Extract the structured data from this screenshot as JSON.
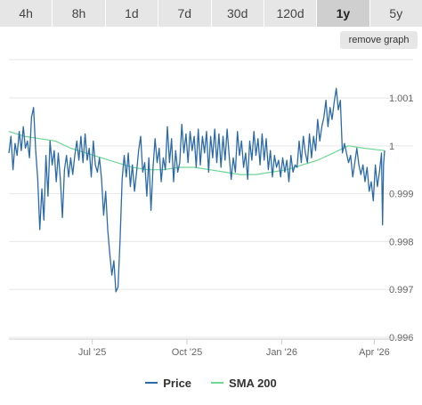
{
  "tabs": [
    {
      "label": "4h",
      "active": false
    },
    {
      "label": "8h",
      "active": false
    },
    {
      "label": "1d",
      "active": false
    },
    {
      "label": "7d",
      "active": false
    },
    {
      "label": "30d",
      "active": false
    },
    {
      "label": "120d",
      "active": false
    },
    {
      "label": "1y",
      "active": true
    },
    {
      "label": "5y",
      "active": false
    }
  ],
  "remove_graph_label": "remove graph",
  "colors": {
    "price": "#2b6aa8",
    "sma": "#6fd694",
    "grid": "#e6e6e6"
  },
  "chart_data": {
    "type": "line",
    "title": "",
    "xlabel": "",
    "ylabel": "",
    "x_range": [
      "2025-04-11",
      "2026-04-11"
    ],
    "ylim": [
      0.996,
      1.0018
    ],
    "yticks": [
      {
        "value": 1.001,
        "label": "1.001"
      },
      {
        "value": 1.0,
        "label": "1"
      },
      {
        "value": 0.999,
        "label": "0.999"
      },
      {
        "value": 0.998,
        "label": "0.998"
      },
      {
        "value": 0.997,
        "label": "0.997"
      },
      {
        "value": 0.996,
        "label": "0.996"
      }
    ],
    "xticks": [
      {
        "date": "2025-07-01",
        "label": "Jul '25"
      },
      {
        "date": "2025-10-01",
        "label": "Oct '25"
      },
      {
        "date": "2026-01-01",
        "label": "Jan '26"
      },
      {
        "date": "2026-04-01",
        "label": "Apr '26"
      }
    ],
    "grid": true,
    "legend_position": "bottom",
    "series": [
      {
        "name": "Price",
        "points": [
          [
            "2025-04-11",
            0.99985
          ],
          [
            "2025-04-13",
            1.0002
          ],
          [
            "2025-04-15",
            0.9995
          ],
          [
            "2025-04-17",
            1.00005
          ],
          [
            "2025-04-19",
            0.9998
          ],
          [
            "2025-04-21",
            1.0003
          ],
          [
            "2025-04-23",
            0.9999
          ],
          [
            "2025-04-25",
            1.0004
          ],
          [
            "2025-04-27",
            0.99995
          ],
          [
            "2025-04-29",
            1.0001
          ],
          [
            "2025-05-01",
            0.99975
          ],
          [
            "2025-05-03",
            1.0006
          ],
          [
            "2025-05-05",
            1.0008
          ],
          [
            "2025-05-07",
            0.9999
          ],
          [
            "2025-05-09",
            0.9993
          ],
          [
            "2025-05-11",
            0.99825
          ],
          [
            "2025-05-13",
            0.9991
          ],
          [
            "2025-05-15",
            0.99845
          ],
          [
            "2025-05-17",
            0.9998
          ],
          [
            "2025-05-19",
            0.99895
          ],
          [
            "2025-05-21",
            1.0001
          ],
          [
            "2025-05-23",
            0.9996
          ],
          [
            "2025-05-25",
            0.9999
          ],
          [
            "2025-05-27",
            0.99925
          ],
          [
            "2025-05-29",
            0.99985
          ],
          [
            "2025-05-31",
            0.9993
          ],
          [
            "2025-06-02",
            0.9985
          ],
          [
            "2025-06-04",
            0.9995
          ],
          [
            "2025-06-06",
            0.9998
          ],
          [
            "2025-06-08",
            0.99935
          ],
          [
            "2025-06-10",
            0.99975
          ],
          [
            "2025-06-12",
            0.9994
          ],
          [
            "2025-06-14",
            0.9998
          ],
          [
            "2025-06-16",
            1.0001
          ],
          [
            "2025-06-18",
            0.9997
          ],
          [
            "2025-06-20",
            1.0002
          ],
          [
            "2025-06-22",
            0.99965
          ],
          [
            "2025-06-24",
            1.00025
          ],
          [
            "2025-06-26",
            0.9997
          ],
          [
            "2025-06-28",
            0.99995
          ],
          [
            "2025-06-30",
            0.99935
          ],
          [
            "2025-07-02",
            1.0001
          ],
          [
            "2025-07-04",
            0.9996
          ],
          [
            "2025-07-06",
            0.99945
          ],
          [
            "2025-07-08",
            0.99975
          ],
          [
            "2025-07-10",
            0.9993
          ],
          [
            "2025-07-12",
            0.99855
          ],
          [
            "2025-07-14",
            0.99905
          ],
          [
            "2025-07-16",
            0.99825
          ],
          [
            "2025-07-18",
            0.99775
          ],
          [
            "2025-07-20",
            0.9973
          ],
          [
            "2025-07-22",
            0.9976
          ],
          [
            "2025-07-24",
            0.99695
          ],
          [
            "2025-07-26",
            0.99705
          ],
          [
            "2025-07-28",
            0.99805
          ],
          [
            "2025-07-30",
            0.9993
          ],
          [
            "2025-08-01",
            0.9998
          ],
          [
            "2025-08-03",
            0.99935
          ],
          [
            "2025-08-05",
            0.99985
          ],
          [
            "2025-08-07",
            0.99915
          ],
          [
            "2025-08-09",
            0.9996
          ],
          [
            "2025-08-11",
            0.99905
          ],
          [
            "2025-08-13",
            0.99945
          ],
          [
            "2025-08-15",
            0.9999
          ],
          [
            "2025-08-17",
            1.0002
          ],
          [
            "2025-08-19",
            0.99945
          ],
          [
            "2025-08-21",
            0.99965
          ],
          [
            "2025-08-23",
            0.99895
          ],
          [
            "2025-08-25",
            0.99975
          ],
          [
            "2025-08-27",
            0.99865
          ],
          [
            "2025-08-29",
            0.99955
          ],
          [
            "2025-08-31",
            1.00015
          ],
          [
            "2025-09-02",
            0.99965
          ],
          [
            "2025-09-04",
            0.99995
          ],
          [
            "2025-09-06",
            0.99925
          ],
          [
            "2025-09-08",
            0.99975
          ],
          [
            "2025-09-10",
            0.9995
          ],
          [
            "2025-09-12",
            1.0004
          ],
          [
            "2025-09-14",
            0.99965
          ],
          [
            "2025-09-16",
            1.00015
          ],
          [
            "2025-09-18",
            0.99925
          ],
          [
            "2025-09-20",
            0.9999
          ],
          [
            "2025-09-22",
            0.99945
          ],
          [
            "2025-09-24",
            0.99965
          ],
          [
            "2025-09-26",
            1.00045
          ],
          [
            "2025-09-28",
            0.99985
          ],
          [
            "2025-09-30",
            1.00025
          ],
          [
            "2025-10-02",
            0.99965
          ],
          [
            "2025-10-04",
            1.0003
          ],
          [
            "2025-10-06",
            0.9999
          ],
          [
            "2025-10-08",
            1.0002
          ],
          [
            "2025-10-10",
            0.99955
          ],
          [
            "2025-10-12",
            1.00035
          ],
          [
            "2025-10-14",
            0.9996
          ],
          [
            "2025-10-16",
            1.0002
          ],
          [
            "2025-10-18",
            0.99985
          ],
          [
            "2025-10-20",
            1.0003
          ],
          [
            "2025-10-22",
            0.99945
          ],
          [
            "2025-10-24",
            1.0002
          ],
          [
            "2025-10-26",
            0.99975
          ],
          [
            "2025-10-28",
            1.00035
          ],
          [
            "2025-10-30",
            0.99965
          ],
          [
            "2025-11-01",
            1.00025
          ],
          [
            "2025-11-03",
            0.99955
          ],
          [
            "2025-11-05",
            1.0002
          ],
          [
            "2025-11-07",
            0.9997
          ],
          [
            "2025-11-09",
            1.00035
          ],
          [
            "2025-11-11",
            0.9998
          ],
          [
            "2025-11-13",
            0.9993
          ],
          [
            "2025-11-15",
            0.99975
          ],
          [
            "2025-11-17",
            0.99945
          ],
          [
            "2025-11-19",
            1.0003
          ],
          [
            "2025-11-21",
            0.9998
          ],
          [
            "2025-11-23",
            1.0001
          ],
          [
            "2025-11-25",
            0.99955
          ],
          [
            "2025-11-27",
            0.99985
          ],
          [
            "2025-11-29",
            0.9993
          ],
          [
            "2025-12-01",
            1.0001
          ],
          [
            "2025-12-03",
            0.9997
          ],
          [
            "2025-12-05",
            1.0003
          ],
          [
            "2025-12-07",
            0.9998
          ],
          [
            "2025-12-09",
            1.00015
          ],
          [
            "2025-12-11",
            0.9996
          ],
          [
            "2025-12-13",
            1.00025
          ],
          [
            "2025-12-15",
            0.9997
          ],
          [
            "2025-12-17",
            1.00015
          ],
          [
            "2025-12-19",
            0.9995
          ],
          [
            "2025-12-21",
            0.9999
          ],
          [
            "2025-12-23",
            0.99935
          ],
          [
            "2025-12-25",
            0.9998
          ],
          [
            "2025-12-27",
            0.99955
          ],
          [
            "2025-12-29",
            0.9997
          ],
          [
            "2025-12-31",
            0.99935
          ],
          [
            "2026-01-02",
            0.99975
          ],
          [
            "2026-01-04",
            0.99945
          ],
          [
            "2026-01-06",
            0.9997
          ],
          [
            "2026-01-08",
            0.99925
          ],
          [
            "2026-01-10",
            0.9998
          ],
          [
            "2026-01-12",
            0.99945
          ],
          [
            "2026-01-14",
            0.9996
          ],
          [
            "2026-01-16",
            0.99955
          ],
          [
            "2026-01-18",
            1.0001
          ],
          [
            "2026-01-20",
            0.99965
          ],
          [
            "2026-01-22",
            1.0002
          ],
          [
            "2026-01-24",
            0.99985
          ],
          [
            "2026-01-26",
            0.99965
          ],
          [
            "2026-01-28",
            1.00025
          ],
          [
            "2026-01-30",
            0.99975
          ],
          [
            "2026-02-01",
            1.0002
          ],
          [
            "2026-02-03",
            0.9999
          ],
          [
            "2026-02-05",
            1.00055
          ],
          [
            "2026-02-07",
            1.0001
          ],
          [
            "2026-02-09",
            1.0004
          ],
          [
            "2026-02-11",
            1.0006
          ],
          [
            "2026-02-13",
            1.00095
          ],
          [
            "2026-02-15",
            1.0004
          ],
          [
            "2026-02-17",
            1.0008
          ],
          [
            "2026-02-19",
            1.00055
          ],
          [
            "2026-02-21",
            1.0009
          ],
          [
            "2026-02-23",
            1.0012
          ],
          [
            "2026-02-25",
            1.00075
          ],
          [
            "2026-02-27",
            1.00095
          ],
          [
            "2026-03-01",
            0.99985
          ],
          [
            "2026-03-03",
            1.00005
          ],
          [
            "2026-03-05",
            0.99985
          ],
          [
            "2026-03-07",
            0.99965
          ],
          [
            "2026-03-09",
            0.9998
          ],
          [
            "2026-03-11",
            0.99935
          ],
          [
            "2026-03-13",
            0.99965
          ],
          [
            "2026-03-15",
            0.99995
          ],
          [
            "2026-03-17",
            0.9996
          ],
          [
            "2026-03-19",
            0.9994
          ],
          [
            "2026-03-21",
            0.9996
          ],
          [
            "2026-03-23",
            0.99925
          ],
          [
            "2026-03-25",
            0.99955
          ],
          [
            "2026-03-27",
            0.99905
          ],
          [
            "2026-03-29",
            0.99925
          ],
          [
            "2026-03-31",
            0.99885
          ],
          [
            "2026-04-02",
            0.9996
          ],
          [
            "2026-04-04",
            0.99915
          ],
          [
            "2026-04-06",
            0.99945
          ],
          [
            "2026-04-08",
            0.99985
          ],
          [
            "2026-04-09",
            0.99835
          ],
          [
            "2026-04-10",
            0.9996
          ],
          [
            "2026-04-11",
            0.9999
          ]
        ]
      },
      {
        "name": "SMA 200",
        "points": [
          [
            "2025-04-11",
            1.0003
          ],
          [
            "2025-04-26",
            1.0002
          ],
          [
            "2025-05-11",
            1.00015
          ],
          [
            "2025-05-26",
            1.0001
          ],
          [
            "2025-06-10",
            0.99995
          ],
          [
            "2025-06-25",
            0.99985
          ],
          [
            "2025-07-10",
            0.99975
          ],
          [
            "2025-07-25",
            0.99965
          ],
          [
            "2025-08-09",
            0.99955
          ],
          [
            "2025-08-24",
            0.9995
          ],
          [
            "2025-09-08",
            0.9995
          ],
          [
            "2025-09-23",
            0.99955
          ],
          [
            "2025-10-08",
            0.99955
          ],
          [
            "2025-10-23",
            0.9995
          ],
          [
            "2025-11-07",
            0.99945
          ],
          [
            "2025-11-22",
            0.9994
          ],
          [
            "2025-12-07",
            0.9994
          ],
          [
            "2025-12-22",
            0.99945
          ],
          [
            "2026-01-06",
            0.9995
          ],
          [
            "2026-01-21",
            0.9996
          ],
          [
            "2026-02-05",
            0.9997
          ],
          [
            "2026-02-20",
            0.99985
          ],
          [
            "2026-03-07",
            1.0
          ],
          [
            "2026-03-22",
            0.99995
          ],
          [
            "2026-04-11",
            0.9999
          ]
        ]
      }
    ]
  }
}
